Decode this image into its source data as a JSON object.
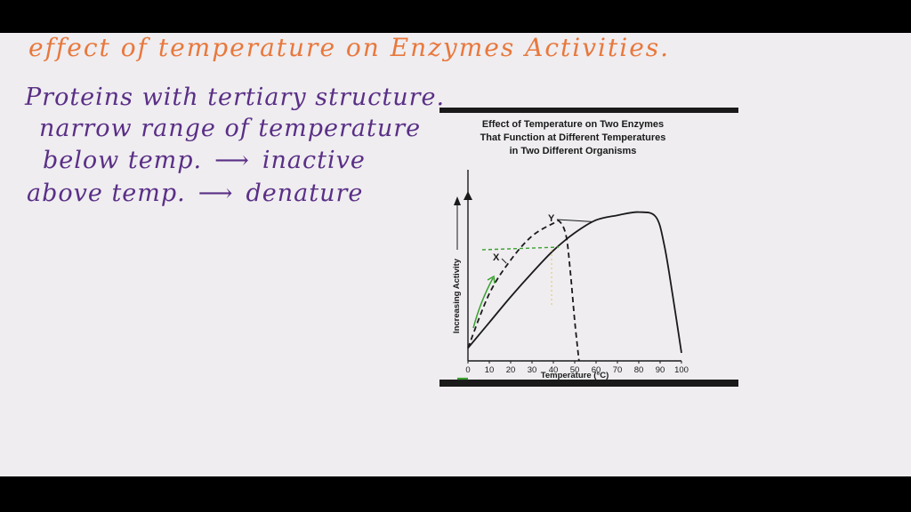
{
  "notes": {
    "title": "effect of temperature on Enzymes Activities.",
    "line1": "Proteins with tertiary structure.",
    "line2": "narrow range of temperature",
    "line3_left": "below temp.",
    "line3_right": "inactive",
    "line4_left": "above temp.",
    "line4_right": "denature",
    "arrow_glyph": "⟶"
  },
  "colors": {
    "title_ink": "#e8783c",
    "note_ink": "#5a2f86",
    "annotation_green": "#3aa12f"
  },
  "chart_data": {
    "type": "line",
    "title": "Effect of Temperature on Two Enzymes That Function at Different Temperatures in Two Different Organisms",
    "title_lines": [
      "Effect of Temperature on Two Enzymes",
      "That Function at Different Temperatures",
      "in Two Different Organisms"
    ],
    "xlabel": "Temperature (°C)",
    "ylabel": "Increasing Activity",
    "xlim": [
      0,
      100
    ],
    "ylim": [
      0,
      100
    ],
    "xticks": [
      0,
      10,
      20,
      30,
      40,
      50,
      60,
      70,
      80,
      90,
      100
    ],
    "grid": false,
    "series": [
      {
        "name": "X",
        "style": "dashed",
        "points": [
          [
            0,
            8
          ],
          [
            10,
            42
          ],
          [
            20,
            63
          ],
          [
            30,
            78
          ],
          [
            40,
            86
          ],
          [
            43,
            87
          ],
          [
            46,
            78
          ],
          [
            48,
            55
          ],
          [
            50,
            25
          ],
          [
            52,
            0
          ]
        ]
      },
      {
        "name": "Y",
        "style": "solid",
        "points": [
          [
            0,
            8
          ],
          [
            10,
            24
          ],
          [
            20,
            40
          ],
          [
            30,
            55
          ],
          [
            40,
            69
          ],
          [
            50,
            80
          ],
          [
            60,
            88
          ],
          [
            70,
            91
          ],
          [
            80,
            93
          ],
          [
            88,
            90
          ],
          [
            92,
            72
          ],
          [
            96,
            40
          ],
          [
            100,
            5
          ]
        ]
      }
    ]
  }
}
